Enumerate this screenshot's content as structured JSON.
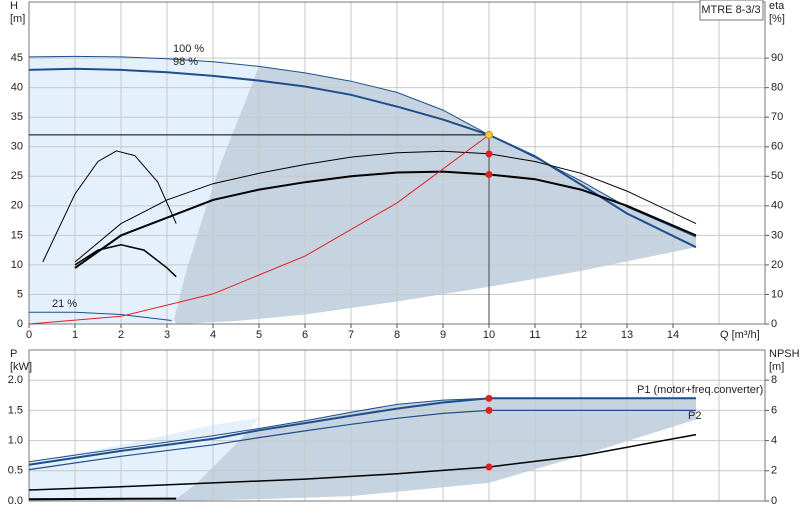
{
  "chart_data": [
    {
      "type": "line",
      "badge": "MTRE 8-3/3",
      "ylabel": "H",
      "yunit": "[m]",
      "y2label": "eta",
      "y2unit": "[%]",
      "xlabel": "Q [m³/h]",
      "xlim": [
        0,
        16
      ],
      "xticks": [
        0,
        1,
        2,
        3,
        4,
        5,
        6,
        7,
        8,
        9,
        10,
        11,
        12,
        13,
        14
      ],
      "xgrid": [
        0,
        1,
        2,
        3,
        4,
        5,
        6,
        7,
        8,
        9,
        10,
        11,
        12,
        13,
        14,
        15,
        16
      ],
      "ylim": [
        0,
        54.5
      ],
      "yticks": [
        0,
        5,
        10,
        15,
        20,
        25,
        30,
        35,
        40,
        45
      ],
      "y2lim": [
        0,
        109
      ],
      "y2ticks": [
        0,
        10,
        20,
        30,
        40,
        50,
        60,
        70,
        80,
        90
      ],
      "grid": true,
      "annotations": [
        "100 %",
        "98 %",
        "21 %"
      ],
      "area": {
        "color": "#c6d3e0",
        "upper_series": 0,
        "x": [
          14.5,
          12,
          10,
          8,
          6,
          4.5,
          3.2
        ],
        "values": [
          13,
          9,
          6.3,
          3.8,
          1.6,
          0.5,
          0
        ]
      },
      "series": [
        {
          "color": "#1f4e8c",
          "width": 1,
          "x": [
            0,
            1,
            2,
            3,
            4,
            5,
            6,
            7,
            8,
            9,
            10,
            11,
            12,
            13,
            14.5
          ],
          "values": [
            45.2,
            45.3,
            45.2,
            44.9,
            44.4,
            43.6,
            42.5,
            41.1,
            39.2,
            36.2,
            32,
            28.2,
            24.2,
            19.8,
            14.7
          ]
        },
        {
          "color": "#1f4e8c",
          "width": 2,
          "x": [
            0,
            1,
            2,
            3,
            4,
            5,
            6,
            7,
            8,
            9,
            10,
            11,
            12,
            13,
            14.5
          ],
          "values": [
            43,
            43.2,
            43,
            42.6,
            42,
            41.2,
            40.2,
            38.8,
            36.8,
            34.6,
            32,
            28.4,
            23.6,
            18.7,
            13
          ]
        },
        {
          "color": "#000000",
          "width": 1,
          "axis": "y2",
          "x": [
            1,
            2,
            3,
            4,
            5,
            6,
            7,
            8,
            9,
            10,
            11,
            12,
            13,
            14.5
          ],
          "values": [
            21,
            34,
            42,
            47.5,
            51,
            54,
            56.5,
            58,
            58.5,
            57.6,
            55,
            51,
            45,
            34
          ]
        },
        {
          "color": "#000000",
          "width": 2,
          "axis": "y2",
          "x": [
            1,
            2,
            3,
            4,
            5,
            6,
            7,
            8,
            9,
            10,
            11,
            12,
            13,
            14.5
          ],
          "values": [
            19,
            30,
            36,
            42,
            45.5,
            48,
            50,
            51.3,
            51.6,
            50.6,
            49,
            45.5,
            40,
            30
          ]
        },
        {
          "color": "#000000",
          "width": 1,
          "x": [
            0.3,
            1,
            1.5,
            1.9,
            2.3,
            2.8,
            3.2
          ],
          "values": [
            10.5,
            22,
            27.5,
            29.3,
            28.5,
            24,
            17
          ]
        },
        {
          "color": "#000000",
          "width": 1.5,
          "x": [
            1,
            1.5,
            2,
            2.5,
            3,
            3.2
          ],
          "values": [
            10,
            12.5,
            13.4,
            12.5,
            9.5,
            8
          ]
        },
        {
          "color": "#1f4e8c",
          "width": 1,
          "x": [
            0,
            1,
            2,
            3.1
          ],
          "values": [
            2,
            2,
            1.6,
            0.6
          ]
        },
        {
          "color": "#e02020",
          "width": 1,
          "x": [
            0,
            2,
            4,
            6,
            8,
            10
          ],
          "values": [
            0,
            1.3,
            5.1,
            11.5,
            20.5,
            32
          ]
        }
      ],
      "markers": [
        {
          "x": 10,
          "value": 32,
          "color": "#f5c842"
        },
        {
          "x": 10,
          "value": 57.6,
          "color": "#e02020",
          "axis": "y2"
        },
        {
          "x": 10,
          "value": 50.6,
          "color": "#e02020",
          "axis": "y2"
        }
      ]
    },
    {
      "type": "line",
      "ylabel": "P",
      "yunit": "[kW]",
      "y2label": "NPSH",
      "y2unit": "[m]",
      "xlim": [
        0,
        16
      ],
      "xgrid": [
        0,
        1,
        2,
        3,
        4,
        5,
        6,
        7,
        8,
        9,
        10,
        11,
        12,
        13,
        14,
        15,
        16
      ],
      "ylim": [
        0,
        2.5
      ],
      "yticks": [
        {
          "value": 0,
          "label": "0.0"
        },
        0.5,
        {
          "value": 1,
          "label": "1.0"
        },
        1.5,
        {
          "value": 2,
          "label": "2.0"
        }
      ],
      "y2lim": [
        0,
        10
      ],
      "y2ticks": [
        0,
        2,
        4,
        6,
        8
      ],
      "grid": true,
      "annotations": [
        "P1 (motor+freq.converter)",
        "P2"
      ],
      "area": {
        "color": "#c6d3e0",
        "upper_series": 0,
        "x": [
          14.5,
          12,
          10,
          7,
          5,
          3.2
        ],
        "values": [
          1.35,
          0.75,
          0.3,
          0.08,
          0.03,
          0
        ]
      },
      "series": [
        {
          "color": "#1f4e8c",
          "width": 1,
          "x": [
            0,
            2,
            4,
            5,
            6,
            7,
            8,
            9,
            10,
            14.5
          ],
          "values": [
            0.65,
            0.87,
            1.08,
            1.2,
            1.33,
            1.47,
            1.6,
            1.67,
            1.7,
            1.7
          ]
        },
        {
          "color": "#1f4e8c",
          "width": 2,
          "x": [
            0,
            2,
            4,
            5,
            6,
            7,
            8,
            9,
            10,
            14.5
          ],
          "values": [
            0.6,
            0.83,
            1.03,
            1.17,
            1.29,
            1.41,
            1.53,
            1.63,
            1.7,
            1.7
          ]
        },
        {
          "color": "#1f4e8c",
          "width": 1.2,
          "x": [
            0,
            2,
            4,
            5,
            6,
            7,
            8,
            9,
            10,
            14.5
          ],
          "values": [
            0.52,
            0.74,
            0.93,
            1.05,
            1.16,
            1.27,
            1.37,
            1.45,
            1.5,
            1.5
          ]
        },
        {
          "color": "#000000",
          "width": 1.5,
          "axis": "y2",
          "x": [
            0,
            2,
            4,
            6,
            8,
            10,
            12,
            14.5
          ],
          "values": [
            0.73,
            0.95,
            1.2,
            1.45,
            1.8,
            2.25,
            3,
            4.4
          ]
        },
        {
          "color": "#000000",
          "width": 2,
          "x": [
            0,
            3.2
          ],
          "values": [
            0.03,
            0.04
          ]
        }
      ],
      "markers": [
        {
          "x": 10,
          "value": 1.7,
          "color": "#e02020"
        },
        {
          "x": 10,
          "value": 1.5,
          "color": "#e02020"
        },
        {
          "x": 10,
          "value": 2.25,
          "color": "#e02020",
          "axis": "y2"
        }
      ]
    }
  ]
}
